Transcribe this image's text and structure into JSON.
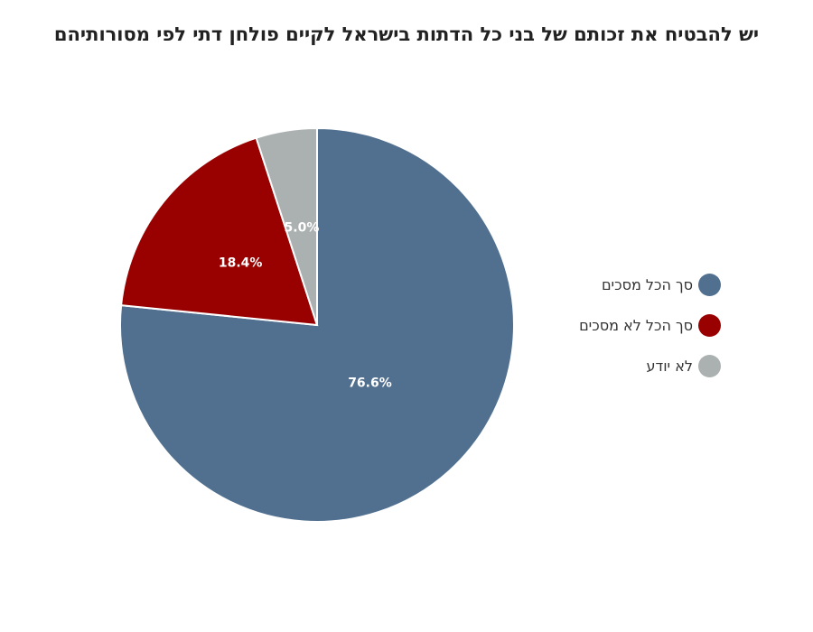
{
  "chart_data": {
    "type": "pie",
    "title": "יש להבטיח את זכותם של בני כל הדתות בישראל לקיים פולחן דתי לפי מסורותיהם",
    "slices": [
      {
        "label": "סך הכל מסכים",
        "value": 76.6,
        "value_label": "76.6%",
        "color": "#51708f"
      },
      {
        "label": "סך הכל לא מסכים",
        "value": 18.4,
        "value_label": "18.4%",
        "color": "#990000"
      },
      {
        "label": "לא יודע",
        "value": 5.0,
        "value_label": "5.0%",
        "color": "#abb0b1"
      }
    ],
    "legend_position": "right"
  }
}
